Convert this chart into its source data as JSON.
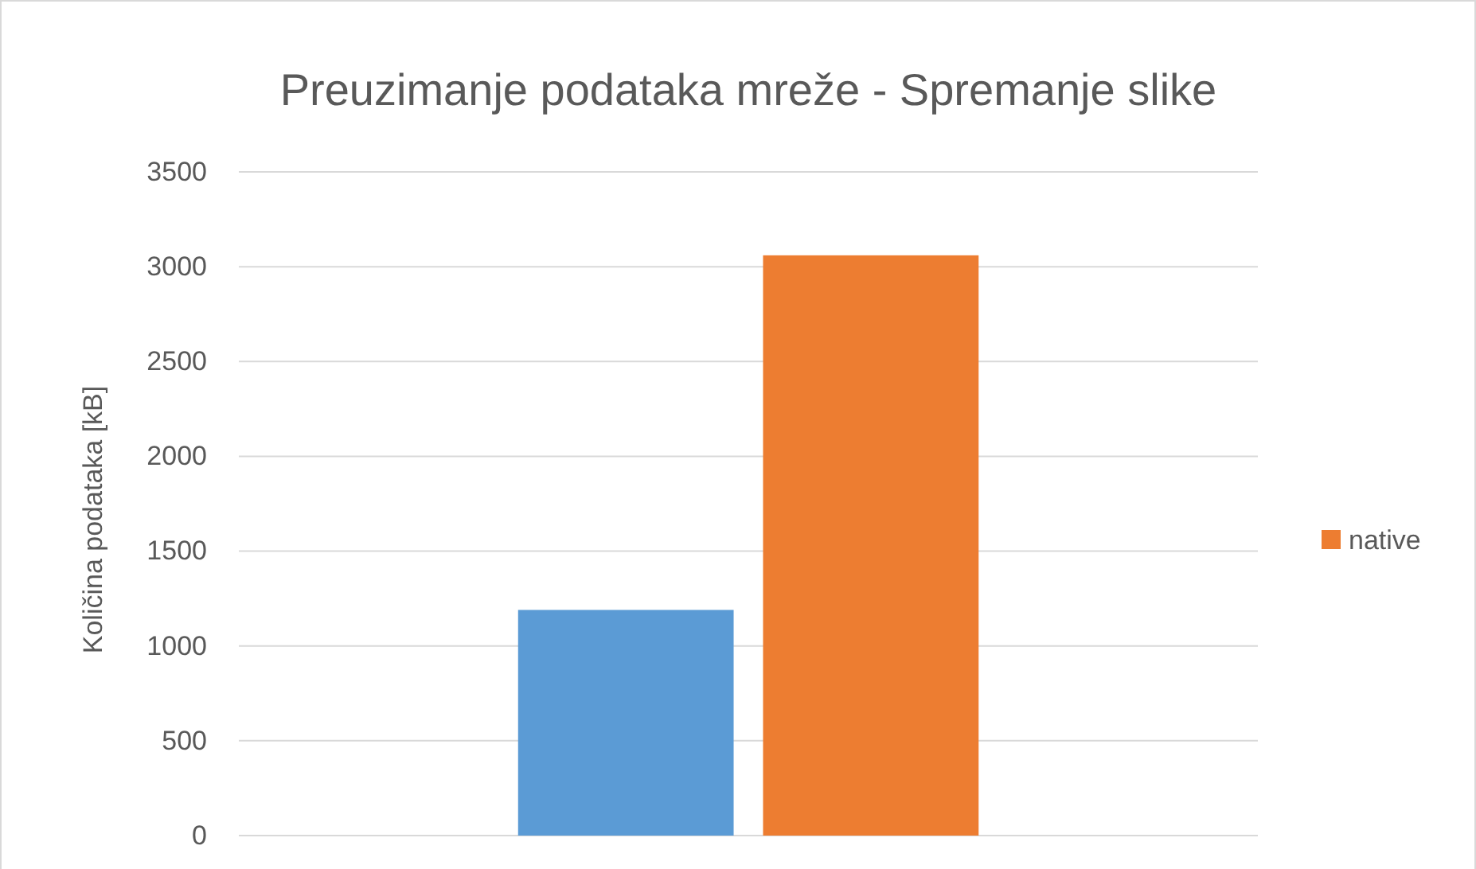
{
  "chart_data": {
    "type": "bar",
    "title": "Preuzimanje podataka mreže - Spremanje slike",
    "ylabel": "Količina podataka [kB]",
    "categories": [
      null
    ],
    "series": [
      {
        "color": "#5b9bd5",
        "values": [
          1190
        ]
      },
      {
        "name": "native",
        "color": "#ed7d31",
        "values": [
          3060
        ]
      }
    ],
    "ylim": [
      0,
      3500
    ],
    "yticks": [
      0,
      500,
      1000,
      1500,
      2000,
      2500,
      3000,
      3500
    ],
    "grid": "y",
    "legend": "right"
  }
}
